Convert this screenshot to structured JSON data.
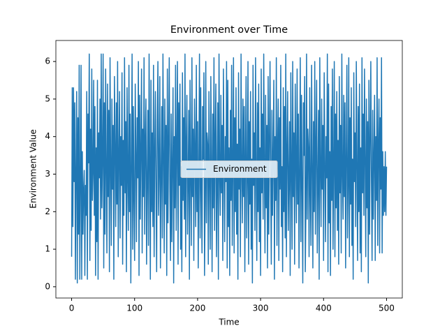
{
  "chart_data": {
    "type": "line",
    "title": "Environment over Time",
    "x_label": "Time",
    "y_label": "Environment Value",
    "x": [
      0,
      1,
      2,
      3,
      4,
      5,
      6,
      7,
      8,
      9,
      10,
      11,
      12,
      13,
      14,
      15,
      16,
      17,
      18,
      19,
      20,
      21,
      22,
      23,
      24,
      25,
      26,
      27,
      28,
      29,
      30,
      31,
      32,
      33,
      34,
      35,
      36,
      37,
      38,
      39,
      40,
      41,
      42,
      43,
      44,
      45,
      46,
      47,
      48,
      49,
      50,
      51,
      52,
      53,
      54,
      55,
      56,
      57,
      58,
      59,
      60,
      61,
      62,
      63,
      64,
      65,
      66,
      67,
      68,
      69,
      70,
      71,
      72,
      73,
      74,
      75,
      76,
      77,
      78,
      79,
      80,
      81,
      82,
      83,
      84,
      85,
      86,
      87,
      88,
      89,
      90,
      91,
      92,
      93,
      94,
      95,
      96,
      97,
      98,
      99,
      100,
      101,
      102,
      103,
      104,
      105,
      106,
      107,
      108,
      109,
      110,
      111,
      112,
      113,
      114,
      115,
      116,
      117,
      118,
      119,
      120,
      121,
      122,
      123,
      124,
      125,
      126,
      127,
      128,
      129,
      130,
      131,
      132,
      133,
      134,
      135,
      136,
      137,
      138,
      139,
      140,
      141,
      142,
      143,
      144,
      145,
      146,
      147,
      148,
      149,
      150,
      151,
      152,
      153,
      154,
      155,
      156,
      157,
      158,
      159,
      160,
      161,
      162,
      163,
      164,
      165,
      166,
      167,
      168,
      169,
      170,
      171,
      172,
      173,
      174,
      175,
      176,
      177,
      178,
      179,
      180,
      181,
      182,
      183,
      184,
      185,
      186,
      187,
      188,
      189,
      190,
      191,
      192,
      193,
      194,
      195,
      196,
      197,
      198,
      199,
      200,
      201,
      202,
      203,
      204,
      205,
      206,
      207,
      208,
      209,
      210,
      211,
      212,
      213,
      214,
      215,
      216,
      217,
      218,
      219,
      220,
      221,
      222,
      223,
      224,
      225,
      226,
      227,
      228,
      229,
      230,
      231,
      232,
      233,
      234,
      235,
      236,
      237,
      238,
      239,
      240,
      241,
      242,
      243,
      244,
      245,
      246,
      247,
      248,
      249,
      250,
      251,
      252,
      253,
      254,
      255,
      256,
      257,
      258,
      259,
      260,
      261,
      262,
      263,
      264,
      265,
      266,
      267,
      268,
      269,
      270,
      271,
      272,
      273,
      274,
      275,
      276,
      277,
      278,
      279,
      280,
      281,
      282,
      283,
      284,
      285,
      286,
      287,
      288,
      289,
      290,
      291,
      292,
      293,
      294,
      295,
      296,
      297,
      298,
      299,
      300,
      301,
      302,
      303,
      304,
      305,
      306,
      307,
      308,
      309,
      310,
      311,
      312,
      313,
      314,
      315,
      316,
      317,
      318,
      319,
      320,
      321,
      322,
      323,
      324,
      325,
      326,
      327,
      328,
      329,
      330,
      331,
      332,
      333,
      334,
      335,
      336,
      337,
      338,
      339,
      340,
      341,
      342,
      343,
      344,
      345,
      346,
      347,
      348,
      349,
      350,
      351,
      352,
      353,
      354,
      355,
      356,
      357,
      358,
      359,
      360,
      361,
      362,
      363,
      364,
      365,
      366,
      367,
      368,
      369,
      370,
      371,
      372,
      373,
      374,
      375,
      376,
      377,
      378,
      379,
      380,
      381,
      382,
      383,
      384,
      385,
      386,
      387,
      388,
      389,
      390,
      391,
      392,
      393,
      394,
      395,
      396,
      397,
      398,
      399,
      400,
      401,
      402,
      403,
      404,
      405,
      406,
      407,
      408,
      409,
      410,
      411,
      412,
      413,
      414,
      415,
      416,
      417,
      418,
      419,
      420,
      421,
      422,
      423,
      424,
      425,
      426,
      427,
      428,
      429,
      430,
      431,
      432,
      433,
      434,
      435,
      436,
      437,
      438,
      439,
      440,
      441,
      442,
      443,
      444,
      445,
      446,
      447,
      448,
      449,
      450,
      451,
      452,
      453,
      454,
      455,
      456,
      457,
      458,
      459,
      460,
      461,
      462,
      463,
      464,
      465,
      466,
      467,
      468,
      469,
      470,
      471,
      472,
      473,
      474,
      475,
      476,
      477,
      478,
      479,
      480,
      481,
      482,
      483,
      484,
      485,
      486,
      487,
      488,
      489,
      490,
      491,
      492,
      493,
      494,
      495,
      496,
      497,
      498,
      499,
      500
    ],
    "series": [
      {
        "name": "Environment",
        "color": "#1f77b4",
        "values": [
          0.8,
          5.3,
          1.6,
          5.3,
          2.8,
          4.9,
          0.2,
          3.1,
          5.2,
          0.1,
          4.5,
          1.4,
          5.9,
          0.2,
          2.7,
          5.9,
          0.2,
          3.6,
          1.4,
          2.6,
          3.1,
          0.3,
          2.7,
          1.9,
          5.2,
          0.2,
          4.6,
          3.3,
          6.2,
          0.7,
          4.2,
          1.5,
          5.8,
          2.3,
          3.0,
          5.5,
          1.9,
          4.8,
          0.3,
          3.7,
          1.2,
          5.5,
          0.2,
          4.1,
          2.9,
          5.0,
          1.8,
          6.2,
          2.1,
          3.4,
          6.2,
          0.5,
          4.9,
          1.4,
          5.8,
          3.1,
          0.9,
          5.4,
          2.4,
          4.7,
          0.4,
          6.1,
          3.2,
          1.1,
          5.0,
          2.6,
          4.3,
          0.2,
          5.6,
          3.8,
          1.6,
          4.9,
          2.2,
          6.0,
          0.8,
          3.5,
          5.2,
          1.3,
          4.0,
          2.7,
          5.7,
          0.6,
          3.9,
          1.9,
          6.1,
          2.5,
          4.4,
          0.4,
          5.3,
          3.0,
          1.5,
          5.9,
          2.0,
          4.6,
          0.1,
          3.3,
          6.2,
          1.0,
          4.8,
          2.3,
          0.7,
          5.4,
          3.6,
          1.2,
          4.5,
          2.9,
          6.0,
          0.3,
          5.1,
          1.8,
          3.7,
          5.8,
          0.9,
          4.2,
          2.4,
          6.1,
          1.4,
          3.9,
          5.0,
          0.6,
          2.8,
          4.7,
          1.1,
          6.2,
          3.3,
          0.2,
          5.5,
          2.0,
          4.1,
          1.6,
          5.9,
          0.8,
          3.6,
          5.2,
          2.5,
          0.4,
          4.4,
          6.0,
          1.9,
          3.1,
          5.6,
          0.5,
          2.9,
          4.8,
          1.3,
          6.2,
          3.5,
          0.9,
          5.0,
          2.2,
          4.3,
          0.3,
          5.8,
          1.7,
          3.8,
          6.1,
          2.6,
          0.7,
          4.6,
          1.2,
          3.4,
          5.3,
          0.1,
          4.0,
          2.1,
          5.9,
          1.5,
          3.7,
          6.0,
          0.6,
          4.9,
          2.7,
          5.4,
          1.0,
          3.2,
          0.4,
          5.7,
          2.3,
          4.5,
          1.8,
          6.2,
          0.8,
          3.9,
          5.1,
          1.4,
          2.8,
          4.7,
          0.2,
          5.5,
          3.0,
          1.1,
          6.1,
          2.4,
          4.2,
          0.7,
          5.0,
          3.6,
          1.6,
          5.9,
          2.0,
          4.4,
          0.5,
          3.1,
          6.2,
          1.3,
          5.3,
          2.6,
          0.9,
          4.8,
          3.4,
          5.7,
          0.3,
          2.2,
          6.0,
          1.7,
          4.1,
          3.8,
          0.6,
          5.2,
          2.9,
          1.0,
          5.6,
          3.3,
          0.4,
          4.6,
          2.1,
          6.1,
          1.5,
          3.9,
          5.4,
          0.8,
          2.7,
          4.9,
          0.2,
          6.2,
          3.0,
          1.9,
          5.1,
          2.5,
          4.3,
          0.7,
          5.8,
          3.5,
          1.2,
          4.0,
          2.8,
          6.0,
          0.5,
          5.5,
          1.6,
          3.7,
          0.3,
          4.7,
          2.3,
          5.9,
          1.1,
          3.2,
          6.1,
          0.9,
          4.5,
          2.0,
          5.3,
          1.4,
          3.8,
          0.2,
          5.7,
          2.6,
          4.2,
          0.8,
          6.2,
          3.1,
          1.7,
          5.0,
          2.4,
          4.8,
          0.4,
          3.6,
          5.6,
          1.3,
          2.9,
          6.0,
          0.6,
          4.4,
          2.2,
          5.2,
          1.0,
          3.4,
          0.1,
          5.9,
          2.7,
          4.1,
          1.5,
          6.1,
          3.0,
          0.7,
          4.9,
          2.0,
          5.4,
          1.2,
          3.7,
          0.3,
          5.8,
          2.5,
          4.6,
          1.8,
          6.2,
          3.3,
          0.9,
          5.1,
          2.1,
          4.3,
          0.5,
          5.6,
          1.4,
          3.9,
          6.0,
          2.8,
          0.6,
          4.7,
          1.9,
          3.5,
          5.5,
          0.2,
          4.0,
          2.3,
          6.1,
          1.1,
          3.8,
          5.0,
          0.7,
          4.5,
          2.6,
          5.9,
          1.6,
          3.2,
          0.4,
          5.3,
          2.0,
          4.8,
          1.3,
          6.2,
          0.8,
          3.6,
          5.2,
          1.5,
          2.9,
          4.4,
          0.3,
          5.7,
          3.1,
          1.0,
          6.0,
          2.4,
          4.1,
          0.6,
          5.4,
          3.4,
          1.7,
          5.8,
          2.2,
          4.6,
          0.5,
          3.0,
          6.1,
          1.2,
          5.1,
          2.7,
          0.1,
          4.9,
          3.5,
          5.6,
          0.4,
          2.1,
          6.2,
          1.8,
          4.2,
          3.7,
          0.8,
          5.3,
          2.5,
          1.1,
          5.9,
          3.3,
          0.5,
          4.4,
          2.0,
          6.0,
          1.4,
          3.8,
          5.5,
          0.9,
          2.8,
          4.7,
          0.2,
          6.1,
          3.1,
          1.6,
          5.0,
          2.6,
          4.3,
          0.7,
          5.7,
          3.4,
          1.2,
          4.0,
          2.9,
          6.2,
          0.4,
          5.4,
          1.7,
          3.6,
          0.3,
          4.8,
          2.3,
          5.8,
          1.0,
          3.2,
          6.0,
          0.8,
          4.6,
          2.1,
          5.2,
          1.5,
          3.9,
          0.6,
          5.6,
          2.5,
          4.3,
          0.9,
          6.2,
          3.0,
          1.8,
          5.1,
          2.4,
          4.9,
          0.5,
          3.5,
          5.9,
          1.3,
          2.7,
          6.1,
          0.8,
          4.5,
          2.2,
          5.3,
          1.1,
          3.4,
          0.2,
          5.7,
          2.8,
          4.1,
          1.6,
          6.0,
          3.2,
          0.7,
          4.8,
          2.0,
          5.4,
          0.9,
          3.7,
          0.4,
          6.1,
          2.5,
          4.6,
          1.9,
          5.8,
          3.3,
          0.8,
          5.0,
          2.1,
          4.4,
          0.1,
          5.5,
          1.4,
          3.9,
          6.0,
          2.8,
          0.7,
          4.7,
          1.8,
          3.5,
          5.1,
          0.7,
          4.0,
          2.3,
          6.1,
          1.1,
          3.8,
          5.0,
          0.9,
          4.5,
          2.6,
          6.1,
          0.9,
          3.6,
          1.9,
          3.2,
          2.0,
          3.6,
          1.9,
          3.2
        ]
      }
    ],
    "xlim": [
      -25,
      525
    ],
    "ylim": [
      -0.3,
      6.56
    ],
    "xticks": [
      0,
      100,
      200,
      300,
      400,
      500
    ],
    "yticks": [
      0,
      1,
      2,
      3,
      4,
      5,
      6
    ],
    "legend": "center"
  }
}
